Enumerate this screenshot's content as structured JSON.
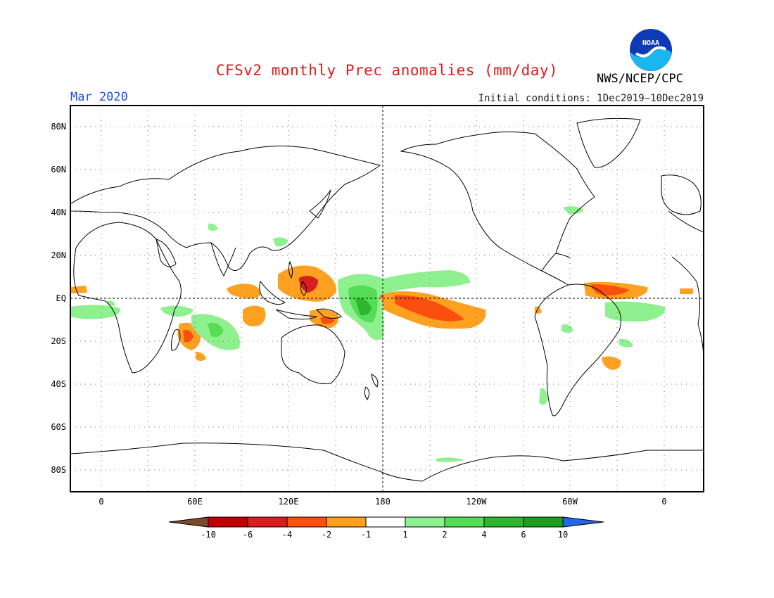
{
  "header": {
    "title": "CFSv2 monthly Prec anomalies (mm/day)",
    "title_color": "#e01b1b",
    "agency": "NWS/NCEP/CPC",
    "logo_text": "NOAA",
    "month": "Mar 2020",
    "month_color": "#1f4fd8",
    "init_conditions": "Initial conditions: 1Dec2019—10Dec2019"
  },
  "map": {
    "projection": "equirectangular",
    "lon_range": [
      -20,
      380
    ],
    "lat_range": [
      -90,
      90
    ],
    "lat_labels": [
      "80N",
      "60N",
      "40N",
      "20N",
      "EQ",
      "20S",
      "40S",
      "60S",
      "80S"
    ],
    "lon_labels": [
      "0",
      "60E",
      "120E",
      "180",
      "120W",
      "60W",
      "0"
    ],
    "gridlines": "dotted"
  },
  "legend": {
    "labels": [
      "-10",
      "-6",
      "-4",
      "-2",
      "-1",
      "1",
      "2",
      "4",
      "6",
      "10"
    ],
    "colors": [
      "#7a4a2a",
      "#c10000",
      "#d81e1e",
      "#fb4f10",
      "#fea020",
      "#ffffff",
      "#8ef08e",
      "#55dd55",
      "#2fb62f",
      "#1d9f1d",
      "#2566e6"
    ]
  }
}
